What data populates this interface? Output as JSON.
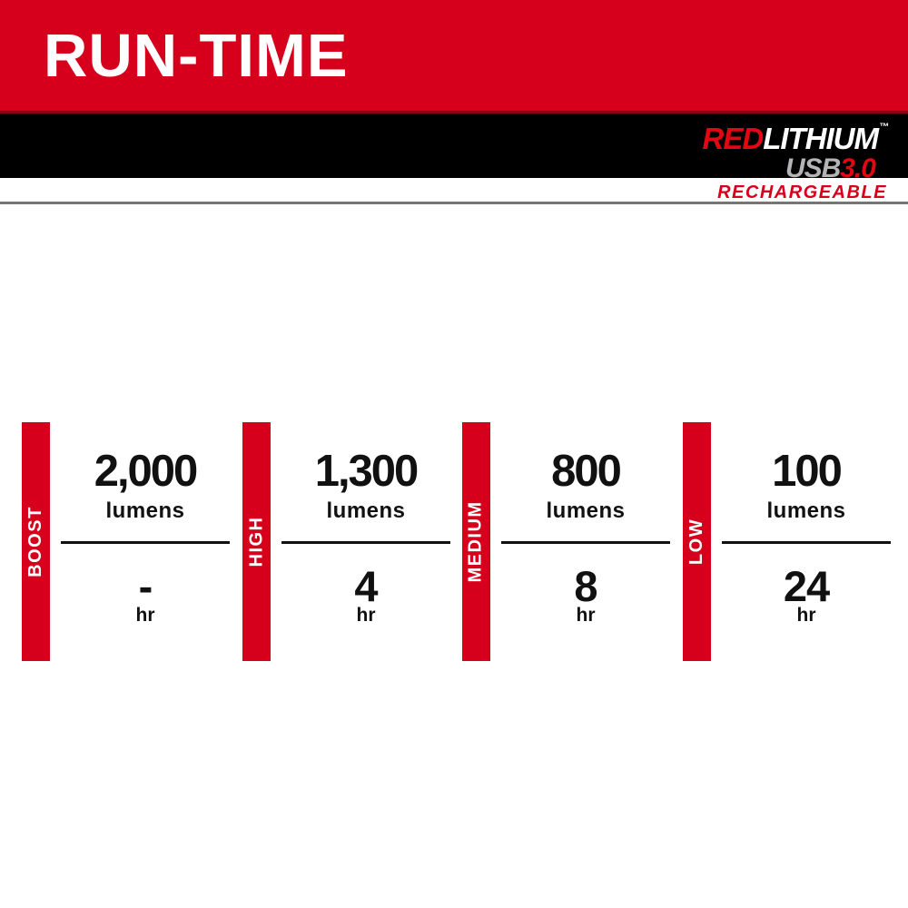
{
  "page": {
    "title": "RUN-TIME"
  },
  "brand": {
    "red_part": "RED",
    "white_part": "LITHIUM",
    "trademark": "™",
    "usb_part": "USB",
    "version_part": "3.0",
    "tagline": "RECHARGEABLE"
  },
  "colors": {
    "milwaukee_red": "#d6001c",
    "dark_red_edge": "#8f0013",
    "logo_red": "#e30613",
    "logo_silver": "#b4b4b6",
    "band_black": "#000000",
    "separator_gray": "#757575",
    "text_black": "#111111",
    "white": "#ffffff"
  },
  "modes": [
    {
      "label": "BOOST",
      "lumens": "2,000",
      "lumens_unit": "lumens",
      "runtime": "-",
      "runtime_unit": "hr"
    },
    {
      "label": "HIGH",
      "lumens": "1,300",
      "lumens_unit": "lumens",
      "runtime": "4",
      "runtime_unit": "hr"
    },
    {
      "label": "MEDIUM",
      "lumens": "800",
      "lumens_unit": "lumens",
      "runtime": "8",
      "runtime_unit": "hr"
    },
    {
      "label": "LOW",
      "lumens": "100",
      "lumens_unit": "lumens",
      "runtime": "24",
      "runtime_unit": "hr"
    }
  ]
}
